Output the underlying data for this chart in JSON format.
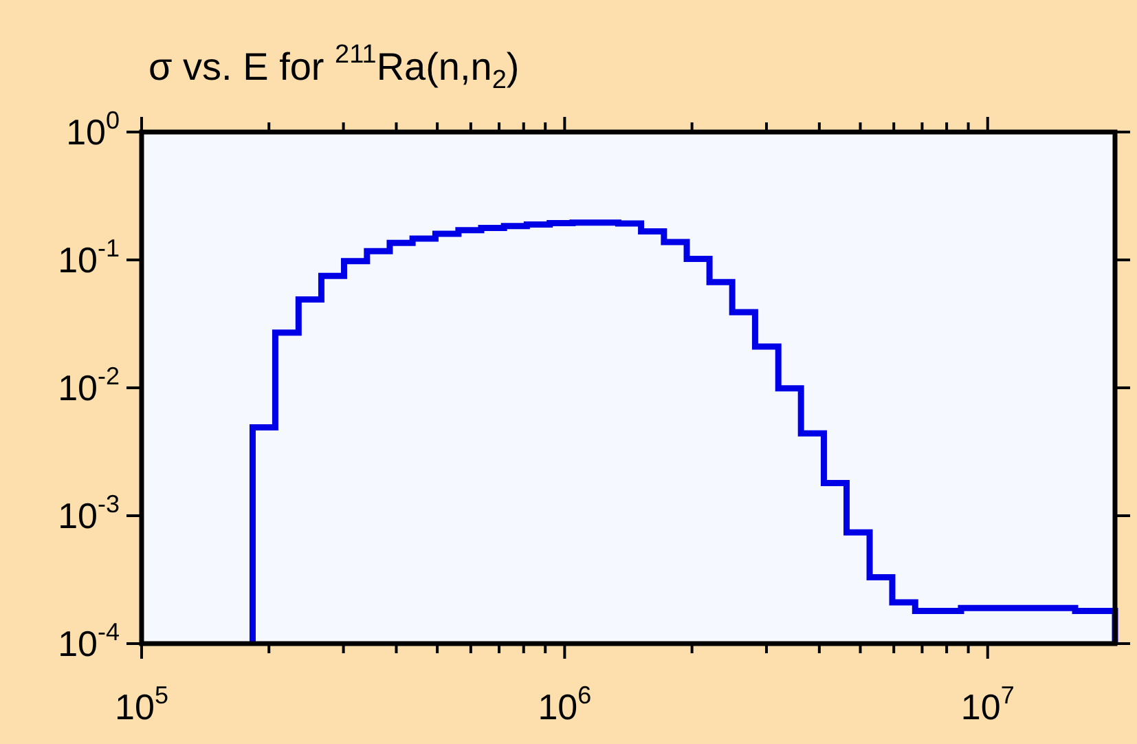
{
  "chart_data": {
    "type": "histogram",
    "title": "σ vs. E for $^{211}$Ra(n,n$_{2}$)",
    "color": "#0000e6",
    "log": "xy",
    "bins": [
      183000,
      207000,
      235000,
      266000,
      301000,
      341000,
      386000,
      437000,
      495000,
      561000,
      635000,
      719000,
      814000,
      922000,
      1044000,
      1182000,
      1339000,
      1516000,
      1717000,
      1944000,
      2200000,
      2490000,
      2820000,
      3200000,
      3620000,
      4100000,
      4640000,
      5260000,
      5950000,
      6740000,
      7640000,
      8650000,
      9790000,
      11090000,
      12560000,
      14220000,
      16100000,
      18230000,
      20000000
    ],
    "values": [
      0.0049,
      0.027,
      0.049,
      0.075,
      0.098,
      0.117,
      0.136,
      0.147,
      0.16,
      0.171,
      0.178,
      0.184,
      0.189,
      0.194,
      0.196,
      0.196,
      0.193,
      0.167,
      0.138,
      0.102,
      0.067,
      0.039,
      0.021,
      0.0099,
      0.0044,
      0.0018,
      0.00074,
      0.00033,
      0.00021,
      0.00018,
      0.00018,
      0.00019,
      0.00019,
      0.00019,
      0.00019,
      0.00019,
      0.00018,
      0.00018
    ],
    "xlim": [
      100000,
      20000000
    ],
    "xticks": [
      {
        "value": 100000,
        "label": "10$^{5}$"
      },
      {
        "value": 200000,
        "label": null
      },
      {
        "value": 300000,
        "label": null
      },
      {
        "value": 400000,
        "label": null
      },
      {
        "value": 500000,
        "label": null
      },
      {
        "value": 600000,
        "label": null
      },
      {
        "value": 700000,
        "label": null
      },
      {
        "value": 800000,
        "label": null
      },
      {
        "value": 900000,
        "label": null
      },
      {
        "value": 1000000,
        "label": "10$^{6}$"
      },
      {
        "value": 2000000,
        "label": null
      },
      {
        "value": 3000000,
        "label": null
      },
      {
        "value": 4000000,
        "label": null
      },
      {
        "value": 5000000,
        "label": null
      },
      {
        "value": 6000000,
        "label": null
      },
      {
        "value": 7000000,
        "label": null
      },
      {
        "value": 8000000,
        "label": null
      },
      {
        "value": 9000000,
        "label": null
      },
      {
        "value": 10000000,
        "label": "10$^{7}$"
      }
    ],
    "ylim": [
      0.0001,
      1
    ],
    "yticks": [
      {
        "value": 0.0001,
        "label": "10$^{-4}$"
      },
      {
        "value": 0.001,
        "label": "10$^{-3}$"
      },
      {
        "value": 0.01,
        "label": "10$^{-2}$"
      },
      {
        "value": 0.1,
        "label": "10$^{-1}$"
      },
      {
        "value": 1,
        "label": "10$^{0}$"
      }
    ]
  }
}
